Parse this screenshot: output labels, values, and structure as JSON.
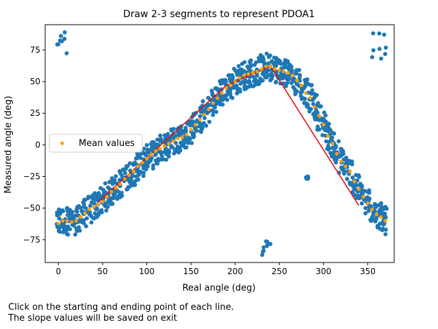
{
  "chart_data": {
    "type": "scatter",
    "title": "Draw 2-3 segments to represent PDOA1",
    "xlabel": "Real angle (deg)",
    "ylabel": "Measured angle (deg)",
    "xlim": [
      -15,
      380
    ],
    "ylim": [
      -93,
      95
    ],
    "xticks": [
      0,
      50,
      100,
      150,
      200,
      250,
      300,
      350
    ],
    "yticks": [
      -75,
      -50,
      -25,
      0,
      25,
      50,
      75
    ],
    "legend": {
      "position": "center-left",
      "entries": [
        "Mean values"
      ]
    },
    "colors": {
      "scatter": "#1f77b4",
      "mean": "#ff9f0a",
      "segments": "#e01010"
    },
    "mean_values": {
      "name": "Mean values",
      "x": [
        0,
        5,
        10,
        15,
        20,
        25,
        30,
        35,
        40,
        45,
        50,
        55,
        60,
        65,
        70,
        75,
        80,
        85,
        90,
        95,
        100,
        105,
        110,
        115,
        120,
        125,
        130,
        135,
        140,
        145,
        150,
        155,
        160,
        165,
        170,
        175,
        180,
        185,
        190,
        195,
        200,
        205,
        210,
        215,
        220,
        225,
        230,
        235,
        240,
        245,
        250,
        255,
        260,
        265,
        270,
        275,
        280,
        285,
        290,
        295,
        300,
        305,
        310,
        315,
        320,
        325,
        330,
        335,
        340,
        345,
        350,
        355,
        360,
        365,
        370
      ],
      "y": [
        -62,
        -60,
        -60,
        -61,
        -60,
        -57,
        -54,
        -51,
        -49,
        -47,
        -45,
        -41,
        -37,
        -34,
        -31,
        -27,
        -24,
        -21,
        -17,
        -14,
        -11,
        -8,
        -5,
        -3,
        -1,
        1,
        3,
        5,
        6,
        8,
        12,
        16,
        20,
        24,
        28,
        33,
        37,
        41,
        45,
        47,
        50,
        53,
        55,
        56,
        57,
        58,
        60,
        62,
        62,
        60,
        59,
        58,
        57,
        55,
        51,
        47,
        41,
        37,
        30,
        23,
        16,
        7,
        1,
        -7,
        -13,
        -17,
        -21,
        -29,
        -35,
        -41,
        -46,
        -51,
        -55,
        -57,
        -60
      ]
    },
    "segments": [
      {
        "x": [
          45,
          190
        ],
        "y": [
          -45,
          47
        ]
      },
      {
        "x": [
          190,
          240
        ],
        "y": [
          47,
          62
        ]
      },
      {
        "x": [
          240,
          340
        ],
        "y": [
          62,
          -48
        ]
      }
    ],
    "scatter_clusters": [
      {
        "x": [
          -2,
          10
        ],
        "y": [
          68,
          89
        ]
      },
      {
        "x": [
          230,
          240
        ],
        "y": [
          -87,
          -76
        ]
      },
      {
        "x": [
          355,
          373
        ],
        "y": [
          68,
          89
        ]
      },
      {
        "x": [
          280,
          283
        ],
        "y": [
          -27,
          -25
        ]
      }
    ]
  },
  "notes": {
    "line1": "Click on the starting and ending point of each line.",
    "line2": "The slope values will be saved on exit"
  }
}
